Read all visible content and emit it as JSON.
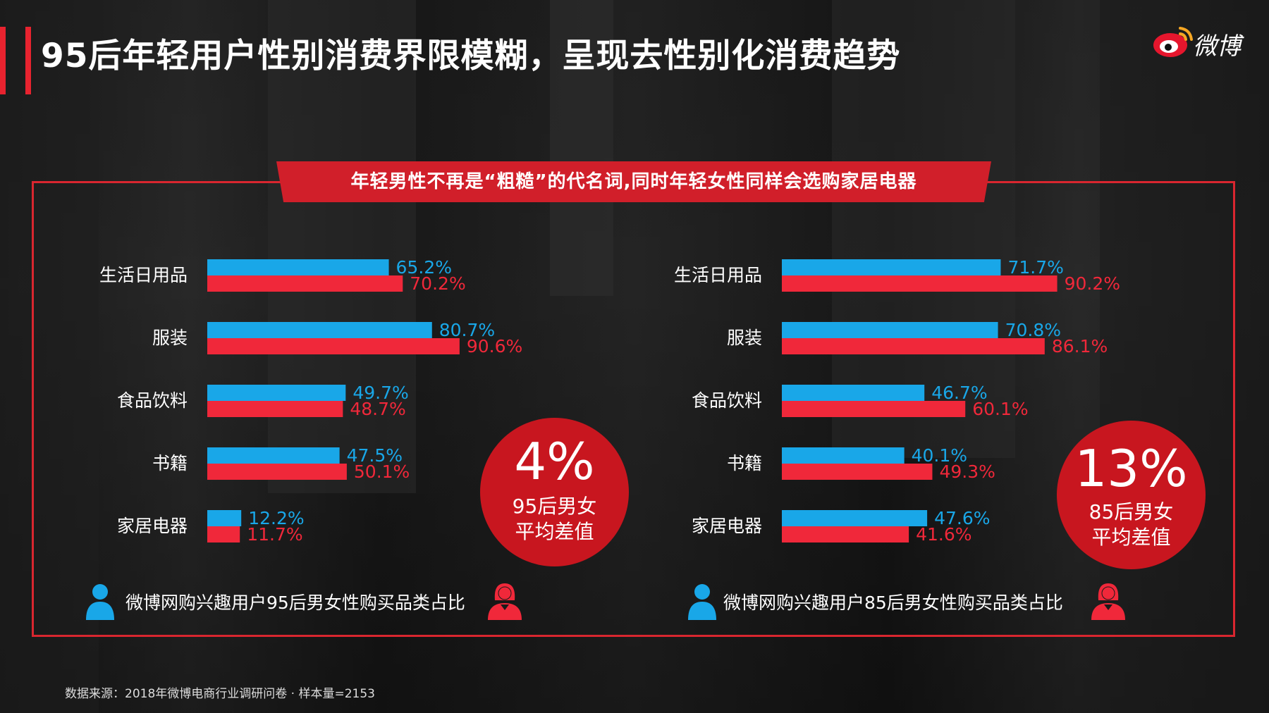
{
  "title": "95后年轻用户性别消费界限模糊，呈现去性别化消费趋势",
  "brand": "微博",
  "banner": "年轻男性不再是“粗糙”的代名词,同时年轻女性同样会选购家居电器",
  "colors": {
    "male": "#19a7e8",
    "female": "#f0283a",
    "accent": "#d11f2a"
  },
  "circles": [
    {
      "value": "4%",
      "label_line1": "95后男女",
      "label_line2": "平均差值"
    },
    {
      "value": "13%",
      "label_line1": "85后男女",
      "label_line2": "平均差值"
    }
  ],
  "captions": [
    "微博网购兴趣用户95后男女性购买品类占比",
    "微博网购兴趣用户85后男女性购买品类占比"
  ],
  "icons": {
    "male": "male-user-icon",
    "female": "female-user-icon",
    "logo": "weibo-eye-logo-icon"
  },
  "source": "数据来源：2018年微博电商行业调研问卷 · 样本量=2153",
  "chart_data": [
    {
      "type": "bar",
      "orientation": "horizontal",
      "categories": [
        "生活日用品",
        "服装",
        "食品饮料",
        "书籍",
        "家居电器"
      ],
      "series": [
        {
          "values": [
            65.2,
            80.7,
            49.7,
            47.5,
            12.2
          ],
          "labels": [
            "65.2%",
            "80.7%",
            "49.7%",
            "47.5%",
            "12.2%"
          ],
          "color": "#19a7e8"
        },
        {
          "values": [
            70.2,
            90.6,
            48.7,
            50.1,
            11.7
          ],
          "labels": [
            "70.2%",
            "90.6%",
            "48.7%",
            "50.1%",
            "11.7%"
          ],
          "color": "#f0283a"
        }
      ],
      "xlim": [
        0,
        100
      ]
    },
    {
      "type": "bar",
      "orientation": "horizontal",
      "categories": [
        "生活日用品",
        "服装",
        "食品饮料",
        "书籍",
        "家居电器"
      ],
      "series": [
        {
          "values": [
            71.7,
            70.8,
            46.7,
            40.1,
            47.6
          ],
          "labels": [
            "71.7%",
            "70.8%",
            "46.7%",
            "40.1%",
            "47.6%"
          ],
          "color": "#19a7e8"
        },
        {
          "values": [
            90.2,
            86.1,
            60.1,
            49.3,
            41.6
          ],
          "labels": [
            "90.2%",
            "86.1%",
            "60.1%",
            "49.3%",
            "41.6%"
          ],
          "color": "#f0283a"
        }
      ],
      "xlim": [
        0,
        100
      ]
    }
  ]
}
